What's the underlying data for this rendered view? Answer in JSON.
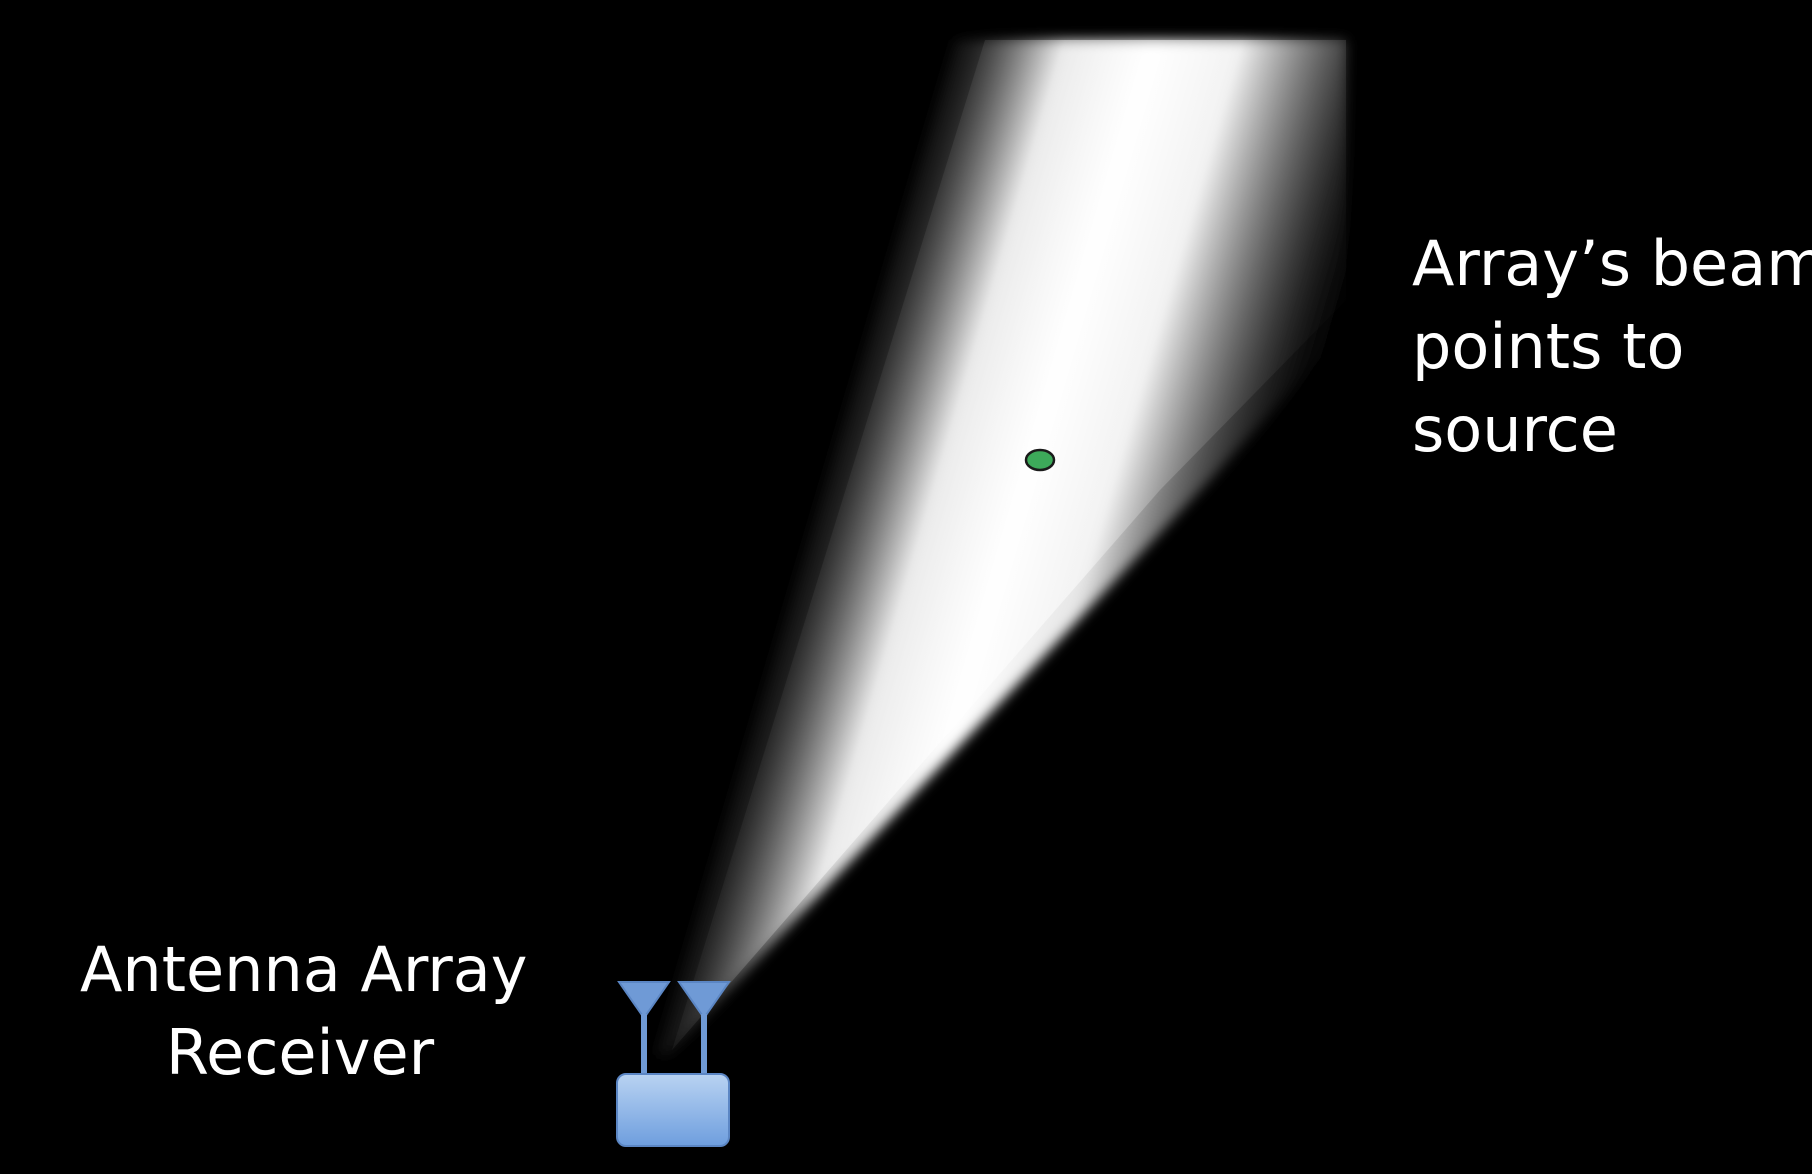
{
  "colors": {
    "background": "#000000",
    "beam": "#ffffff",
    "source_fill": "#3daa5a",
    "receiver_fill_top": "#b9d3f2",
    "receiver_fill_bottom": "#6e9ede",
    "receiver_stroke": "#5b86c4"
  },
  "labels": {
    "receiver": {
      "line1": "Antenna Array",
      "line2": "Receiver"
    },
    "beam": {
      "line1": "Array’s  beam",
      "line2": "points to",
      "line3": "source"
    }
  },
  "elements": {
    "beam": "beam-cone",
    "source": "signal-source-dot",
    "receiver_box": "receiver-box",
    "antennas": [
      "antenna-left-icon",
      "antenna-right-icon"
    ]
  }
}
